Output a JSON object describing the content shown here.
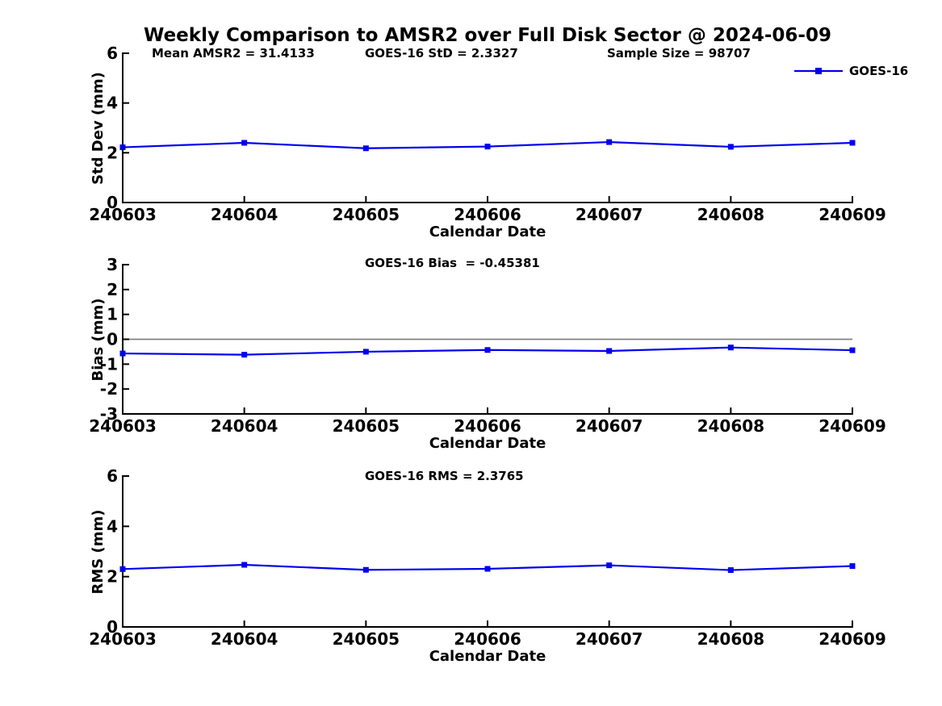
{
  "title": "Weekly Comparison to AMSR2 over Full Disk Sector @ 2024-06-09",
  "legend": {
    "label": "GOES-16",
    "position": "top-right-outside"
  },
  "colors": {
    "series": "#0000EE",
    "zero_line": "#808080",
    "axis": "#000000",
    "text": "#000000",
    "background": "#FFFFFF"
  },
  "chart_data": [
    {
      "type": "line",
      "id": "std-dev",
      "annotations": [
        "Mean AMSR2 = 31.4133",
        "GOES-16 StD = 2.3327",
        "Sample Size = 98707"
      ],
      "categories": [
        "240603",
        "240604",
        "240605",
        "240606",
        "240607",
        "240608",
        "240609"
      ],
      "series": [
        {
          "name": "GOES-16",
          "values": [
            2.22,
            2.4,
            2.18,
            2.25,
            2.43,
            2.24,
            2.4
          ]
        }
      ],
      "xlabel": "Calendar Date",
      "ylabel": "Std Dev (mm)",
      "ylim": [
        0,
        6
      ],
      "yticks": [
        0,
        2,
        4,
        6
      ],
      "grid": false,
      "marker": "square",
      "zero_line": false
    },
    {
      "type": "line",
      "id": "bias",
      "annotations": [
        "GOES-16 Bias  = -0.45381"
      ],
      "categories": [
        "240603",
        "240604",
        "240605",
        "240606",
        "240607",
        "240608",
        "240609"
      ],
      "series": [
        {
          "name": "GOES-16",
          "values": [
            -0.57,
            -0.62,
            -0.5,
            -0.43,
            -0.47,
            -0.33,
            -0.44
          ]
        }
      ],
      "xlabel": "Calendar Date",
      "ylabel": "Bias (mm)",
      "ylim": [
        -3,
        3
      ],
      "yticks": [
        -3,
        -2,
        -1,
        0,
        1,
        2,
        3
      ],
      "grid": false,
      "marker": "square",
      "zero_line": true
    },
    {
      "type": "line",
      "id": "rms",
      "annotations": [
        "GOES-16 RMS = 2.3765"
      ],
      "categories": [
        "240603",
        "240604",
        "240605",
        "240606",
        "240607",
        "240608",
        "240609"
      ],
      "series": [
        {
          "name": "GOES-16",
          "values": [
            2.3,
            2.47,
            2.27,
            2.31,
            2.45,
            2.26,
            2.42
          ]
        }
      ],
      "xlabel": "Calendar Date",
      "ylabel": "RMS (mm)",
      "ylim": [
        0,
        6
      ],
      "yticks": [
        0,
        2,
        4,
        6
      ],
      "grid": false,
      "marker": "square",
      "zero_line": false
    }
  ]
}
